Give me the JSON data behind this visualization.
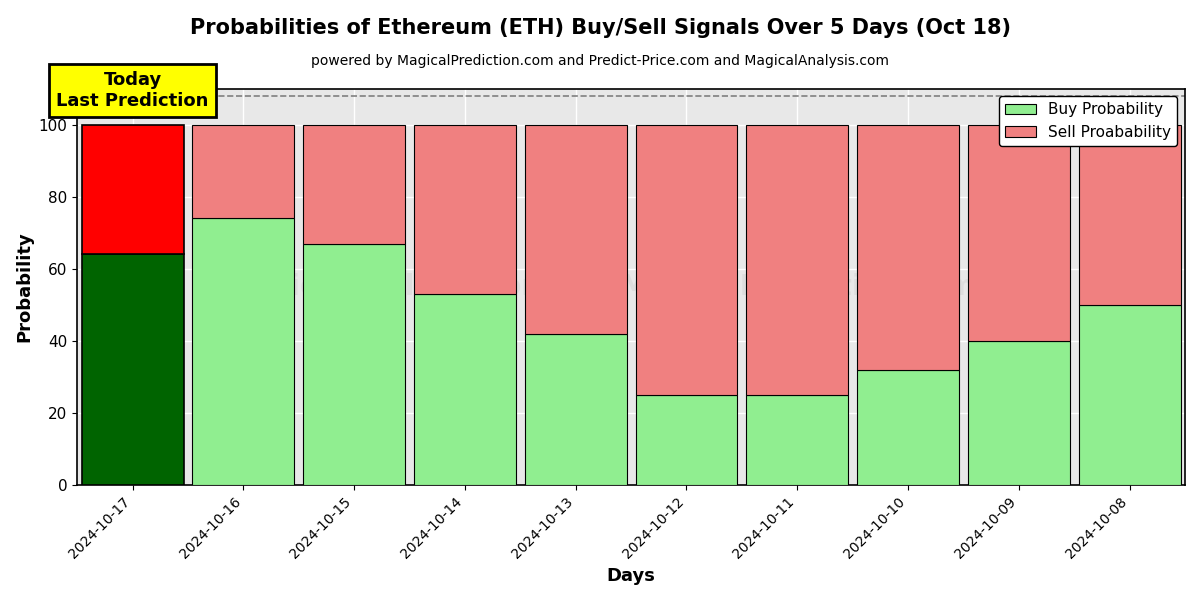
{
  "title": "Probabilities of Ethereum (ETH) Buy/Sell Signals Over 5 Days (Oct 18)",
  "subtitle": "powered by MagicalPrediction.com and Predict-Price.com and MagicalAnalysis.com",
  "xlabel": "Days",
  "ylabel": "Probability",
  "dates": [
    "2024-10-17",
    "2024-10-16",
    "2024-10-15",
    "2024-10-14",
    "2024-10-13",
    "2024-10-12",
    "2024-10-11",
    "2024-10-10",
    "2024-10-09",
    "2024-10-08"
  ],
  "buy_probs": [
    64,
    74,
    67,
    53,
    42,
    25,
    25,
    32,
    40,
    50
  ],
  "sell_probs": [
    36,
    26,
    33,
    47,
    58,
    75,
    75,
    68,
    60,
    50
  ],
  "today_buy_color": "#006400",
  "today_sell_color": "#ff0000",
  "other_buy_color": "#90EE90",
  "other_sell_color": "#F08080",
  "today_label_bg": "#ffff00",
  "today_label_text": "Today\nLast Prediction",
  "legend_buy": "Buy Probability",
  "legend_sell": "Sell Proabability",
  "ylim": [
    0,
    110
  ],
  "dashed_line_y": 108,
  "background_color": "#ffffff",
  "grid_color": "#ffffff",
  "title_fontsize": 15,
  "subtitle_fontsize": 10,
  "bar_width": 0.92
}
